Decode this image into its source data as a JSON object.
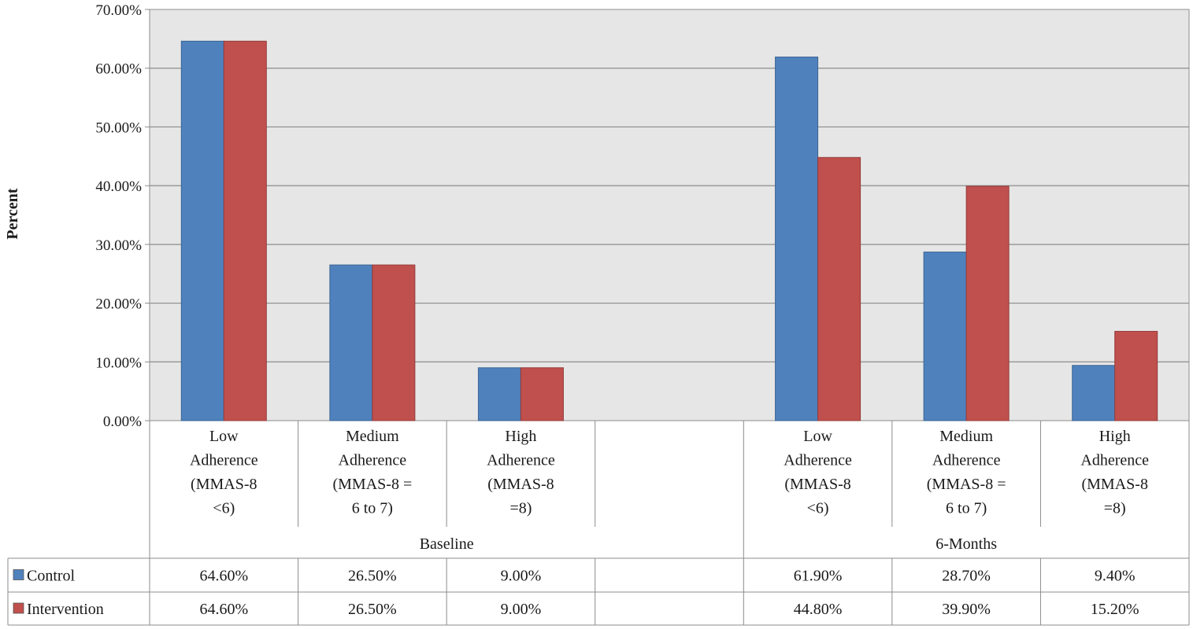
{
  "chart_data": {
    "type": "bar",
    "title": "",
    "xlabel": "",
    "ylabel": "Percent",
    "ylim": [
      0,
      70
    ],
    "yticks": [
      "0.00%",
      "10.00%",
      "20.00%",
      "30.00%",
      "40.00%",
      "50.00%",
      "60.00%",
      "70.00%"
    ],
    "grid": true,
    "legend": "data-table-left",
    "groups": [
      {
        "label": "Baseline",
        "categories": [
          [
            "Low",
            "Adherence",
            "(MMAS-8",
            "<6)"
          ],
          [
            "Medium",
            "Adherence",
            "(MMAS-8 =",
            "6 to 7)"
          ],
          [
            "High",
            "Adherence",
            "(MMAS-8",
            "=8)"
          ],
          []
        ]
      },
      {
        "label": "6-Months",
        "categories": [
          [
            "Low",
            "Adherence",
            "(MMAS-8",
            "<6)"
          ],
          [
            "Medium",
            "Adherence",
            "(MMAS-8 =",
            "6 to 7)"
          ],
          [
            "High",
            "Adherence",
            "(MMAS-8",
            "=8)"
          ]
        ]
      }
    ],
    "series": [
      {
        "name": "Control",
        "color": "#4f81bd",
        "values": [
          64.6,
          26.5,
          9.0,
          null,
          61.9,
          28.7,
          9.4
        ],
        "labels": [
          "64.60%",
          "26.50%",
          "9.00%",
          "",
          "61.90%",
          "28.70%",
          "9.40%"
        ]
      },
      {
        "name": "Intervention",
        "color": "#c0504d",
        "values": [
          64.6,
          26.5,
          9.0,
          null,
          44.8,
          39.9,
          15.2
        ],
        "labels": [
          "64.60%",
          "26.50%",
          "9.00%",
          "",
          "44.80%",
          "39.90%",
          "15.20%"
        ]
      }
    ]
  }
}
